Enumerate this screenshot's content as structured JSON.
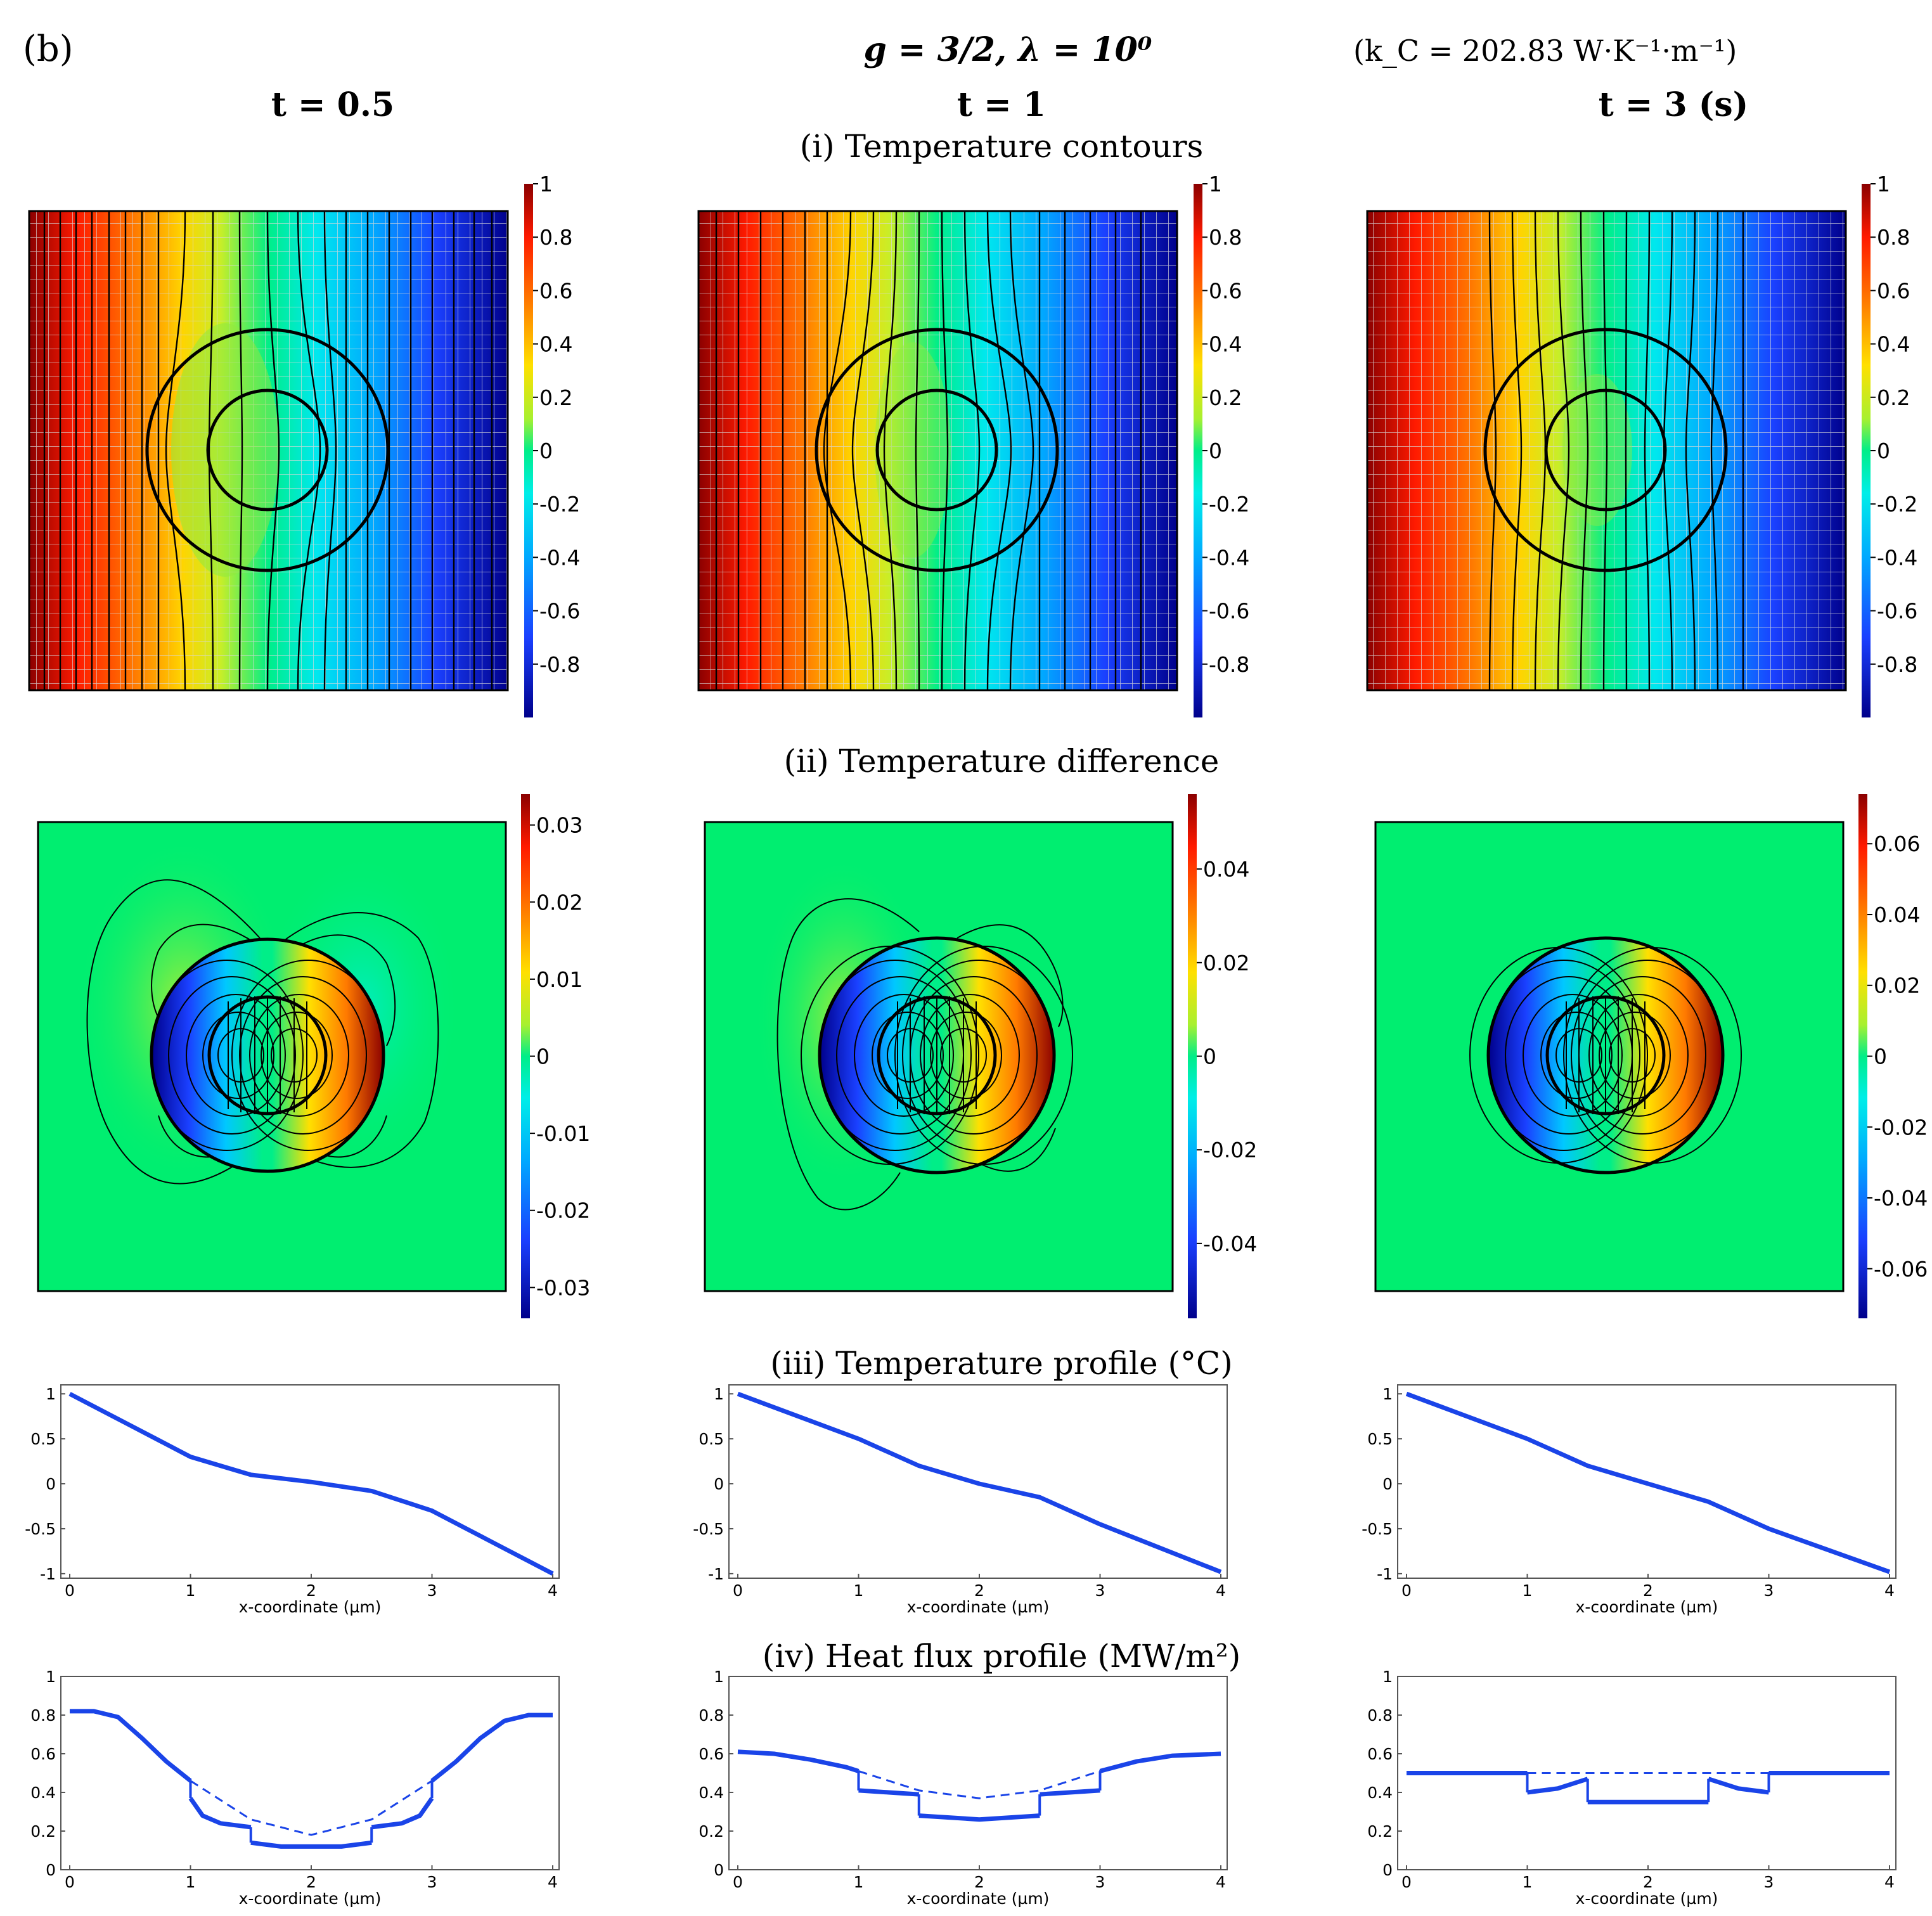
{
  "header": {
    "panel_letter": "(b)",
    "params": "g = 3/2,  λ = 10⁰",
    "conductivity": "(k_C = 202.83  W·K⁻¹·m⁻¹)",
    "time_labels": [
      "t = 0.5",
      "t = 1",
      "t = 3 (s)"
    ]
  },
  "rows": {
    "r1": "(i) Temperature contours",
    "r2": "(ii) Temperature difference",
    "r3": "(iii) Temperature profile (°C)",
    "r4": "(iv) Heat flux profile (MW/m²)"
  },
  "colors": {
    "profile_line": "#1a44e8",
    "frame": "#000000"
  },
  "chart_data": [
    {
      "id": "contour-t05",
      "type": "heatmap",
      "title": "Temperature contours, t = 0.5",
      "colorbar": {
        "range": [
          -1,
          1
        ],
        "ticks": [
          "1",
          "0.8",
          "0.6",
          "0.4",
          "0.2",
          "0",
          "-0.2",
          "-0.4",
          "-0.6",
          "-0.8"
        ]
      }
    },
    {
      "id": "contour-t1",
      "type": "heatmap",
      "title": "Temperature contours, t = 1",
      "colorbar": {
        "range": [
          -1,
          1
        ],
        "ticks": [
          "1",
          "0.8",
          "0.6",
          "0.4",
          "0.2",
          "0",
          "-0.2",
          "-0.4",
          "-0.6",
          "-0.8"
        ]
      }
    },
    {
      "id": "contour-t3",
      "type": "heatmap",
      "title": "Temperature contours, t = 3 (s)",
      "colorbar": {
        "range": [
          -1,
          1
        ],
        "ticks": [
          "1",
          "0.8",
          "0.6",
          "0.4",
          "0.2",
          "0",
          "-0.2",
          "-0.4",
          "-0.6",
          "-0.8"
        ]
      }
    },
    {
      "id": "diff-t05",
      "type": "heatmap",
      "title": "Temperature difference, t = 0.5",
      "colorbar": {
        "range": [
          -0.034,
          0.034
        ],
        "ticks": [
          "0.03",
          "0.02",
          "0.01",
          "0",
          "-0.01",
          "-0.02",
          "-0.03"
        ]
      }
    },
    {
      "id": "diff-t1",
      "type": "heatmap",
      "title": "Temperature difference, t = 1",
      "colorbar": {
        "range": [
          -0.056,
          0.056
        ],
        "ticks": [
          "0.04",
          "0.02",
          "0",
          "-0.02",
          "-0.04"
        ]
      }
    },
    {
      "id": "diff-t3",
      "type": "heatmap",
      "title": "Temperature difference, t = 3 (s)",
      "colorbar": {
        "range": [
          -0.074,
          0.074
        ],
        "ticks": [
          "0.06",
          "0.04",
          "0.02",
          "0",
          "-0.02",
          "-0.04",
          "-0.06"
        ]
      }
    },
    {
      "id": "temp-t05",
      "type": "line",
      "xlabel": "x-coordinate (µm)",
      "xlim": [
        0,
        4
      ],
      "ylim": [
        -1.05,
        1.1
      ],
      "xticks": [
        "0",
        "1",
        "2",
        "3",
        "4"
      ],
      "yticks": [
        "1",
        "0.5",
        "0",
        "-0.5",
        "-1"
      ],
      "series": [
        {
          "name": "solution",
          "x": [
            0,
            0.5,
            1,
            1.5,
            2,
            2.5,
            3,
            3.5,
            4
          ],
          "values": [
            1.0,
            0.65,
            0.3,
            0.1,
            0.02,
            -0.08,
            -0.3,
            -0.65,
            -1.0
          ]
        }
      ]
    },
    {
      "id": "temp-t1",
      "type": "line",
      "xlabel": "x-coordinate (µm)",
      "xlim": [
        0,
        4
      ],
      "ylim": [
        -1.05,
        1.1
      ],
      "xticks": [
        "0",
        "1",
        "2",
        "3",
        "4"
      ],
      "yticks": [
        "1",
        "0.5",
        "0",
        "-0.5",
        "-1"
      ],
      "series": [
        {
          "name": "solution",
          "x": [
            0,
            1,
            1.5,
            2,
            2.5,
            3,
            4
          ],
          "values": [
            1.0,
            0.5,
            0.2,
            0.0,
            -0.15,
            -0.45,
            -0.98
          ]
        }
      ]
    },
    {
      "id": "temp-t3",
      "type": "line",
      "xlabel": "x-coordinate (µm)",
      "xlim": [
        0,
        4
      ],
      "ylim": [
        -1.05,
        1.1
      ],
      "xticks": [
        "0",
        "1",
        "2",
        "3",
        "4"
      ],
      "yticks": [
        "1",
        "0.5",
        "0",
        "-0.5",
        "-1"
      ],
      "series": [
        {
          "name": "solution",
          "x": [
            0,
            1,
            1.5,
            2,
            2.5,
            3,
            4
          ],
          "values": [
            1.0,
            0.5,
            0.2,
            0.0,
            -0.2,
            -0.5,
            -0.98
          ]
        }
      ]
    },
    {
      "id": "flux-t05",
      "type": "line",
      "xlabel": "x-coordinate (µm)",
      "xlim": [
        0,
        4
      ],
      "ylim": [
        0,
        1
      ],
      "xticks": [
        "0",
        "1",
        "2",
        "3",
        "4"
      ],
      "yticks": [
        "1",
        "0.8",
        "0.6",
        "0.4",
        "0.2",
        "0"
      ],
      "series": [
        {
          "name": "solid",
          "segments": [
            {
              "x": [
                0,
                0.2,
                0.4,
                0.6,
                0.8,
                1.0
              ],
              "values": [
                0.82,
                0.82,
                0.79,
                0.68,
                0.56,
                0.46
              ]
            },
            {
              "x": [
                1.0,
                1.1,
                1.25,
                1.5
              ],
              "values": [
                0.37,
                0.28,
                0.24,
                0.22
              ]
            },
            {
              "x": [
                1.5,
                1.75,
                2.0,
                2.25,
                2.5
              ],
              "values": [
                0.14,
                0.12,
                0.12,
                0.12,
                0.14
              ]
            },
            {
              "x": [
                2.5,
                2.75,
                2.9,
                3.0
              ],
              "values": [
                0.22,
                0.24,
                0.28,
                0.37
              ]
            },
            {
              "x": [
                3.0,
                3.2,
                3.4,
                3.6,
                3.8,
                4.0
              ],
              "values": [
                0.46,
                0.56,
                0.68,
                0.77,
                0.8,
                0.8
              ]
            }
          ]
        },
        {
          "name": "dashed",
          "x": [
            1,
            1.5,
            2,
            2.5,
            3
          ],
          "values": [
            0.46,
            0.26,
            0.18,
            0.26,
            0.46
          ]
        }
      ]
    },
    {
      "id": "flux-t1",
      "type": "line",
      "xlabel": "x-coordinate (µm)",
      "xlim": [
        0,
        4
      ],
      "ylim": [
        0,
        1
      ],
      "xticks": [
        "0",
        "1",
        "2",
        "3",
        "4"
      ],
      "yticks": [
        "1",
        "0.8",
        "0.6",
        "0.4",
        "0.2",
        "0"
      ],
      "series": [
        {
          "name": "solid",
          "segments": [
            {
              "x": [
                0,
                0.3,
                0.6,
                0.9,
                1.0
              ],
              "values": [
                0.61,
                0.6,
                0.57,
                0.53,
                0.51
              ]
            },
            {
              "x": [
                1.0,
                1.25,
                1.5
              ],
              "values": [
                0.41,
                0.4,
                0.39
              ]
            },
            {
              "x": [
                1.5,
                2.0,
                2.5
              ],
              "values": [
                0.28,
                0.26,
                0.28
              ]
            },
            {
              "x": [
                2.5,
                2.75,
                3.0
              ],
              "values": [
                0.39,
                0.4,
                0.41
              ]
            },
            {
              "x": [
                3.0,
                3.3,
                3.6,
                4.0
              ],
              "values": [
                0.51,
                0.56,
                0.59,
                0.6
              ]
            }
          ]
        },
        {
          "name": "dashed",
          "x": [
            1,
            1.5,
            2,
            2.5,
            3
          ],
          "values": [
            0.51,
            0.41,
            0.37,
            0.41,
            0.51
          ]
        }
      ]
    },
    {
      "id": "flux-t3",
      "type": "line",
      "xlabel": "x-coordinate (µm)",
      "xlim": [
        0,
        4
      ],
      "ylim": [
        0,
        1
      ],
      "xticks": [
        "0",
        "1",
        "2",
        "3",
        "4"
      ],
      "yticks": [
        "1",
        "0.8",
        "0.6",
        "0.4",
        "0.2",
        "0"
      ],
      "series": [
        {
          "name": "solid",
          "segments": [
            {
              "x": [
                0,
                1.0
              ],
              "values": [
                0.5,
                0.5
              ]
            },
            {
              "x": [
                1.0,
                1.25,
                1.5
              ],
              "values": [
                0.4,
                0.42,
                0.47
              ]
            },
            {
              "x": [
                1.5,
                2.5
              ],
              "values": [
                0.35,
                0.35
              ]
            },
            {
              "x": [
                2.5,
                2.75,
                3.0
              ],
              "values": [
                0.47,
                0.42,
                0.4
              ]
            },
            {
              "x": [
                3.0,
                4.0
              ],
              "values": [
                0.5,
                0.5
              ]
            }
          ]
        },
        {
          "name": "dashed",
          "x": [
            1,
            3
          ],
          "values": [
            0.5,
            0.5
          ]
        }
      ]
    }
  ]
}
